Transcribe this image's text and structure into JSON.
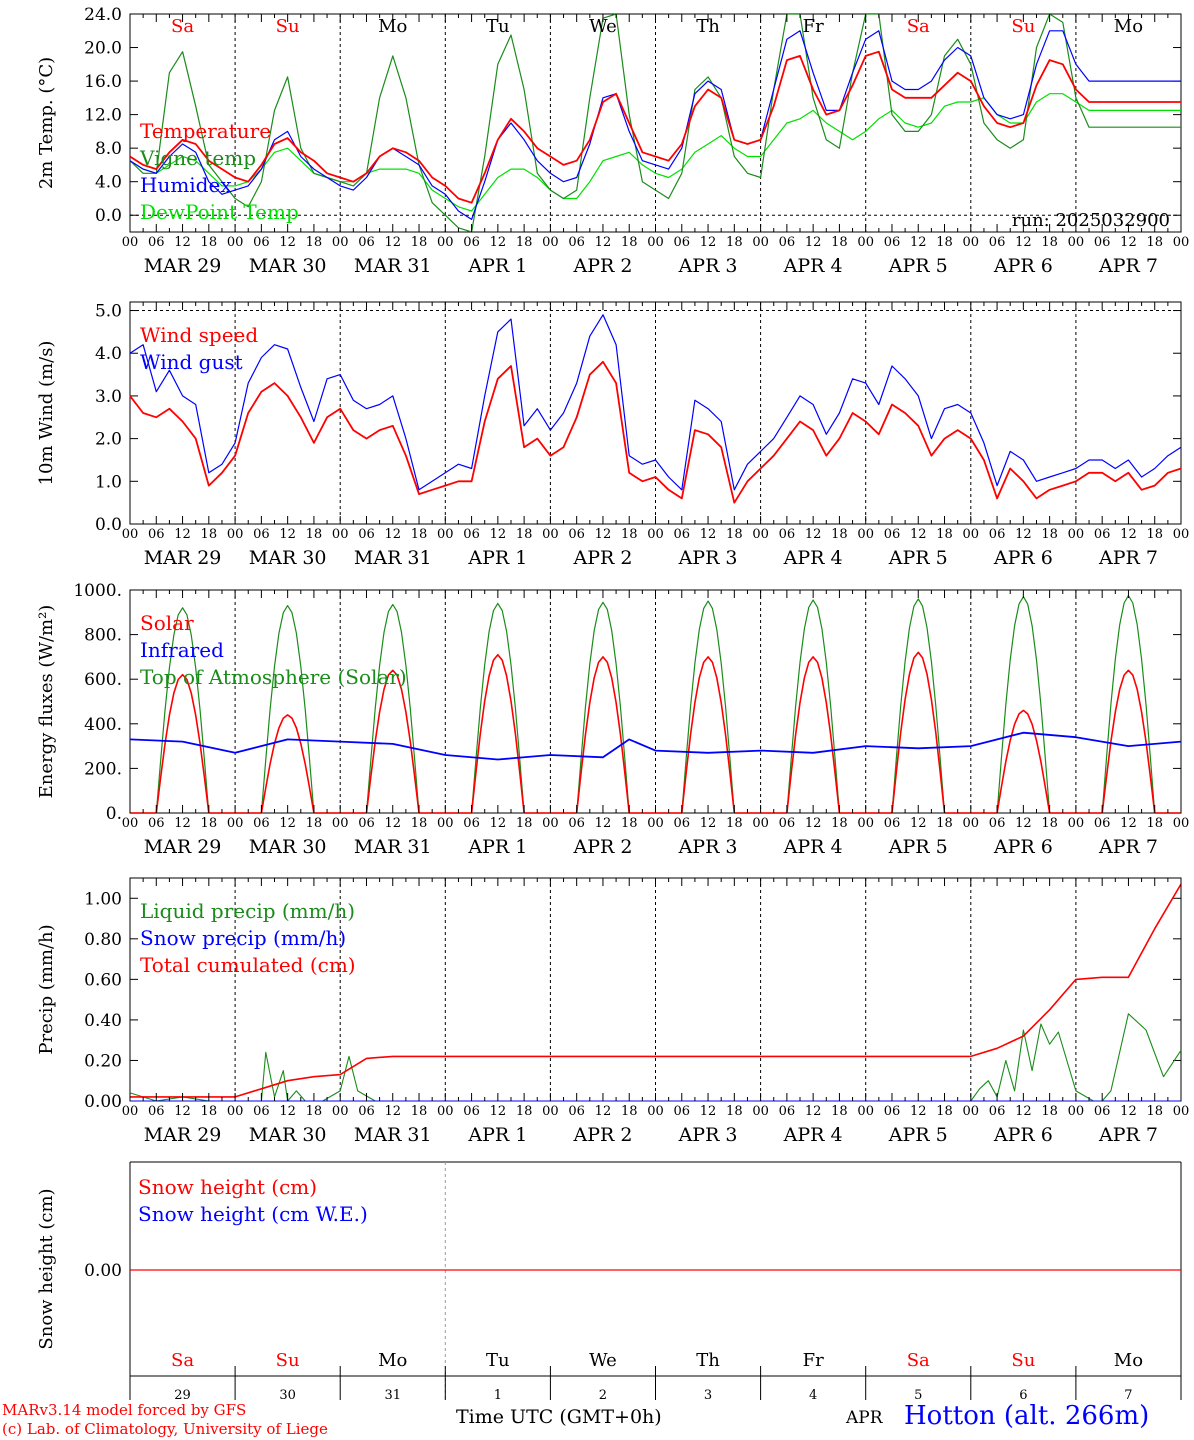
{
  "colors": {
    "red": "#ff0000",
    "dark_green": "#1a8c1a",
    "green": "#00e000",
    "blue": "#0000ff",
    "black": "#000000"
  },
  "x_axis": {
    "hour_ticks": [
      "00",
      "06",
      "12",
      "18"
    ],
    "end_tick": "00",
    "dates": [
      "MAR 29",
      "MAR 30",
      "MAR 31",
      "APR  1",
      "APR  2",
      "APR  3",
      "APR  4",
      "APR  5",
      "APR  6",
      "APR  7"
    ],
    "weekdays": [
      {
        "label": "Sa",
        "weekend": true
      },
      {
        "label": "Su",
        "weekend": true
      },
      {
        "label": "Mo",
        "weekend": false
      },
      {
        "label": "Tu",
        "weekend": false
      },
      {
        "label": "We",
        "weekend": false
      },
      {
        "label": "Th",
        "weekend": false
      },
      {
        "label": "Fr",
        "weekend": false
      },
      {
        "label": "Sa",
        "weekend": true
      },
      {
        "label": "Su",
        "weekend": true
      },
      {
        "label": "Mo",
        "weekend": false
      }
    ],
    "day_numbers": [
      "29",
      "30",
      "31",
      "1",
      "2",
      "3",
      "4",
      "5",
      "6",
      "7"
    ],
    "month_label": "APR",
    "xlabel": "Time UTC (GMT+0h)"
  },
  "chart_data": [
    {
      "type": "line",
      "ylabel": "2m Temp. (°C)",
      "ylim": [
        -2,
        24
      ],
      "yticks": [
        "0.0",
        "4.0",
        "8.0",
        "12.0",
        "16.0",
        "20.0",
        "24.0"
      ],
      "ytick_values": [
        0,
        4,
        8,
        12,
        16,
        20,
        24
      ],
      "reference_line": 0,
      "annotation": "run: 2025032900",
      "x_hours": [
        0,
        3,
        6,
        9,
        12,
        15,
        18,
        21,
        24,
        27,
        30,
        33,
        36,
        39,
        42,
        45,
        48,
        51,
        54,
        57,
        60,
        63,
        66,
        69,
        72,
        75,
        78,
        81,
        84,
        87,
        90,
        93,
        96,
        99,
        102,
        105,
        108,
        111,
        114,
        117,
        120,
        123,
        126,
        129,
        132,
        135,
        138,
        141,
        144,
        147,
        150,
        153,
        156,
        159,
        162,
        165,
        168,
        171,
        174,
        177,
        180,
        183,
        186,
        189,
        192,
        195,
        198,
        201,
        204,
        207,
        210,
        213,
        216,
        219,
        222,
        225,
        228,
        231,
        234,
        237,
        240
      ],
      "series": [
        {
          "name": "Temperature",
          "color_key": "red",
          "values": [
            7.0,
            6.0,
            5.5,
            7.5,
            9.0,
            8.5,
            6.5,
            5.5,
            4.5,
            4.0,
            6.0,
            8.5,
            9.2,
            7.5,
            6.5,
            5.0,
            4.5,
            4.0,
            5.0,
            7.0,
            8.0,
            7.5,
            6.5,
            4.5,
            3.5,
            2.0,
            1.5,
            5.0,
            9.0,
            11.5,
            10.0,
            8.0,
            7.0,
            6.0,
            6.5,
            9.0,
            13.5,
            14.5,
            11.0,
            7.5,
            7.0,
            6.5,
            8.5,
            13.0,
            15.0,
            14.0,
            9.0,
            8.5,
            9.0,
            13.0,
            18.5,
            19.0,
            15.0,
            12.0,
            12.5,
            15.5,
            19.0,
            19.5,
            15.0,
            14.0,
            14.0,
            14.0,
            15.5,
            17.0,
            16.0,
            13.0,
            11.0,
            10.5,
            11.0,
            15.5,
            18.5,
            18.0,
            15.0,
            13.5,
            13.5,
            13.5,
            13.5,
            13.5,
            13.5,
            13.5,
            13.5
          ]
        },
        {
          "name": "Vigne temp",
          "color_key": "dark_green",
          "values": [
            6.5,
            5.0,
            5.0,
            17.0,
            19.5,
            13.0,
            6.0,
            4.0,
            2.0,
            1.0,
            4.0,
            12.5,
            16.5,
            8.0,
            5.0,
            4.5,
            4.0,
            3.5,
            5.0,
            14.0,
            19.0,
            14.0,
            6.0,
            1.5,
            0.0,
            -1.5,
            -2.0,
            7.0,
            18.0,
            21.5,
            15.0,
            5.0,
            3.0,
            2.0,
            3.0,
            14.0,
            23.5,
            24.0,
            12.0,
            4.0,
            3.0,
            2.0,
            5.0,
            15.0,
            16.5,
            14.0,
            7.0,
            5.0,
            4.5,
            15.0,
            24.0,
            24.0,
            14.0,
            9.0,
            8.0,
            17.0,
            24.0,
            24.0,
            12.0,
            10.0,
            10.0,
            12.0,
            19.0,
            21.0,
            18.0,
            11.0,
            9.0,
            8.0,
            9.0,
            20.0,
            24.0,
            23.0,
            14.0,
            10.5,
            10.5,
            10.5,
            10.5,
            10.5,
            10.5,
            10.5,
            10.5
          ]
        },
        {
          "name": "Humidex",
          "color_key": "blue",
          "values": [
            6.5,
            5.5,
            5.0,
            7.0,
            8.5,
            7.5,
            4.0,
            2.5,
            3.0,
            3.5,
            5.5,
            9.0,
            10.0,
            7.0,
            5.5,
            4.5,
            3.5,
            3.0,
            4.5,
            7.0,
            8.0,
            7.0,
            6.0,
            3.5,
            2.5,
            0.5,
            -0.5,
            4.0,
            9.0,
            11.0,
            9.0,
            6.5,
            5.0,
            4.0,
            4.5,
            8.5,
            14.0,
            14.5,
            10.0,
            6.5,
            6.0,
            5.5,
            8.0,
            14.5,
            16.0,
            15.0,
            9.0,
            8.5,
            9.0,
            15.0,
            21.0,
            22.0,
            17.0,
            12.5,
            12.5,
            17.0,
            21.0,
            22.0,
            16.0,
            15.0,
            15.0,
            16.0,
            18.5,
            20.0,
            19.0,
            14.0,
            12.0,
            11.5,
            12.0,
            18.0,
            22.0,
            22.0,
            18.0,
            16.0,
            16.0,
            16.0,
            16.0,
            16.0,
            16.0,
            16.0,
            16.0
          ]
        },
        {
          "name": "DewPoint Temp",
          "color_key": "green",
          "values": [
            6.5,
            5.5,
            5.0,
            6.0,
            7.0,
            6.5,
            5.0,
            3.5,
            3.5,
            4.0,
            5.5,
            7.5,
            8.0,
            6.5,
            5.0,
            4.5,
            4.0,
            4.0,
            5.0,
            5.5,
            5.5,
            5.5,
            5.0,
            3.0,
            2.0,
            1.0,
            0.5,
            2.5,
            4.5,
            5.5,
            5.5,
            4.5,
            3.0,
            2.0,
            2.0,
            4.0,
            6.5,
            7.0,
            7.5,
            6.0,
            5.0,
            4.5,
            5.5,
            7.5,
            8.5,
            9.5,
            8.0,
            7.0,
            7.0,
            9.0,
            11.0,
            11.5,
            12.5,
            11.0,
            10.0,
            9.0,
            10.0,
            11.5,
            12.5,
            11.0,
            10.5,
            11.0,
            13.0,
            13.5,
            13.5,
            14.0,
            12.0,
            11.0,
            11.0,
            13.5,
            14.5,
            14.5,
            13.5,
            12.5,
            12.5,
            12.5,
            12.5,
            12.5,
            12.5,
            12.5,
            12.5
          ]
        }
      ]
    },
    {
      "type": "line",
      "ylabel": "10m Wind (m/s)",
      "ylim": [
        0,
        5.2
      ],
      "yticks": [
        "0.0",
        "1.0",
        "2.0",
        "3.0",
        "4.0",
        "5.0"
      ],
      "ytick_values": [
        0,
        1,
        2,
        3,
        4,
        5
      ],
      "reference_line": 5,
      "x_hours": [
        0,
        3,
        6,
        9,
        12,
        15,
        18,
        21,
        24,
        27,
        30,
        33,
        36,
        39,
        42,
        45,
        48,
        51,
        54,
        57,
        60,
        63,
        66,
        69,
        72,
        75,
        78,
        81,
        84,
        87,
        90,
        93,
        96,
        99,
        102,
        105,
        108,
        111,
        114,
        117,
        120,
        123,
        126,
        129,
        132,
        135,
        138,
        141,
        144,
        147,
        150,
        153,
        156,
        159,
        162,
        165,
        168,
        171,
        174,
        177,
        180,
        183,
        186,
        189,
        192,
        195,
        198,
        201,
        204,
        207,
        210,
        213,
        216,
        219,
        222,
        225,
        228,
        231,
        234,
        237,
        240
      ],
      "series": [
        {
          "name": "Wind speed",
          "color_key": "red",
          "values": [
            3.0,
            2.6,
            2.5,
            2.7,
            2.4,
            2.0,
            0.9,
            1.2,
            1.6,
            2.6,
            3.1,
            3.3,
            3.0,
            2.5,
            1.9,
            2.5,
            2.7,
            2.2,
            2.0,
            2.2,
            2.3,
            1.6,
            0.7,
            0.8,
            0.9,
            1.0,
            1.0,
            2.4,
            3.4,
            3.7,
            1.8,
            2.0,
            1.6,
            1.8,
            2.5,
            3.5,
            3.8,
            3.3,
            1.2,
            1.0,
            1.1,
            0.8,
            0.6,
            2.2,
            2.1,
            1.8,
            0.5,
            1.0,
            1.3,
            1.6,
            2.0,
            2.4,
            2.2,
            1.6,
            2.0,
            2.6,
            2.4,
            2.1,
            2.8,
            2.6,
            2.3,
            1.6,
            2.0,
            2.2,
            2.0,
            1.5,
            0.6,
            1.3,
            1.0,
            0.6,
            0.8,
            0.9,
            1.0,
            1.2,
            1.2,
            1.0,
            1.2,
            0.8,
            0.9,
            1.2,
            1.3
          ]
        },
        {
          "name": "Wind gust",
          "color_key": "blue",
          "values": [
            4.0,
            4.2,
            3.1,
            3.6,
            3.0,
            2.8,
            1.2,
            1.4,
            1.9,
            3.3,
            3.9,
            4.2,
            4.1,
            3.2,
            2.4,
            3.4,
            3.5,
            2.9,
            2.7,
            2.8,
            3.0,
            2.0,
            0.8,
            1.0,
            1.2,
            1.4,
            1.3,
            3.0,
            4.5,
            4.8,
            2.3,
            2.7,
            2.2,
            2.6,
            3.3,
            4.4,
            4.9,
            4.2,
            1.6,
            1.4,
            1.5,
            1.1,
            0.8,
            2.9,
            2.7,
            2.4,
            0.8,
            1.4,
            1.7,
            2.0,
            2.5,
            3.0,
            2.8,
            2.1,
            2.6,
            3.4,
            3.3,
            2.8,
            3.7,
            3.4,
            3.0,
            2.0,
            2.7,
            2.8,
            2.6,
            1.9,
            0.9,
            1.7,
            1.5,
            1.0,
            1.1,
            1.2,
            1.3,
            1.5,
            1.5,
            1.3,
            1.5,
            1.1,
            1.3,
            1.6,
            1.8
          ]
        }
      ]
    },
    {
      "type": "line",
      "ylabel": "Energy fluxes (W/m²)",
      "ylim": [
        0,
        1000
      ],
      "yticks": [
        "0.",
        "200.",
        "400.",
        "600.",
        "800.",
        "1000."
      ],
      "ytick_values": [
        0,
        200,
        400,
        600,
        800,
        1000
      ],
      "day_peaks_toa": [
        920,
        930,
        935,
        940,
        945,
        950,
        955,
        960,
        970,
        975
      ],
      "day_peaks_solar": [
        620,
        440,
        640,
        710,
        700,
        700,
        700,
        720,
        460,
        640
      ],
      "daylight_hours": [
        6,
        18
      ],
      "series": [
        {
          "name": "Solar",
          "color_key": "red",
          "values": [
            620,
            440,
            640,
            710,
            700,
            700,
            700,
            720,
            460,
            640
          ]
        },
        {
          "name": "Infrared",
          "color_key": "blue",
          "x_hours": [
            0,
            12,
            24,
            36,
            48,
            60,
            72,
            84,
            96,
            108,
            114,
            120,
            132,
            144,
            156,
            168,
            180,
            192,
            204,
            216,
            228,
            240
          ],
          "values": [
            330,
            320,
            270,
            330,
            320,
            310,
            260,
            240,
            260,
            250,
            330,
            280,
            270,
            280,
            270,
            300,
            290,
            300,
            360,
            340,
            300,
            320
          ]
        },
        {
          "name": "Top of Atmosphere (Solar)",
          "color_key": "dark_green",
          "values": [
            920,
            930,
            935,
            940,
            945,
            950,
            955,
            960,
            970,
            975
          ]
        }
      ]
    },
    {
      "type": "line",
      "ylabel": "Precip (mm/h)",
      "ylim": [
        0,
        1.1
      ],
      "yticks": [
        "0.00",
        "0.20",
        "0.40",
        "0.60",
        "0.80",
        "1.00"
      ],
      "ytick_values": [
        0,
        0.2,
        0.4,
        0.6,
        0.8,
        1.0
      ],
      "series": [
        {
          "name": "Liquid precip (mm/h)",
          "color_key": "dark_green",
          "x_hours": [
            0,
            6,
            12,
            18,
            24,
            30,
            31,
            33,
            35,
            36,
            38,
            40,
            44,
            48,
            50,
            52,
            56,
            72,
            192,
            194,
            196,
            198,
            200,
            202,
            204,
            206,
            208,
            210,
            212,
            216,
            220,
            222,
            224,
            228,
            232,
            236,
            240
          ],
          "values": [
            0.04,
            0.0,
            0.02,
            0.0,
            0.0,
            0.0,
            0.24,
            0.02,
            0.15,
            0.0,
            0.05,
            0.0,
            0.0,
            0.05,
            0.22,
            0.05,
            0.0,
            0.0,
            0.0,
            0.06,
            0.1,
            0.02,
            0.2,
            0.05,
            0.35,
            0.15,
            0.38,
            0.28,
            0.34,
            0.05,
            0.0,
            0.0,
            0.05,
            0.43,
            0.35,
            0.12,
            0.25
          ]
        },
        {
          "name": "Snow precip (mm/h)",
          "color_key": "blue",
          "x_hours": [
            0,
            240
          ],
          "values": [
            0.0,
            0.0
          ]
        },
        {
          "name": "Total cumulated (cm)",
          "color_key": "red",
          "x_hours": [
            0,
            24,
            30,
            36,
            42,
            48,
            54,
            60,
            72,
            96,
            120,
            144,
            168,
            192,
            198,
            204,
            210,
            216,
            222,
            228,
            234,
            240
          ],
          "values": [
            0.02,
            0.02,
            0.06,
            0.1,
            0.12,
            0.13,
            0.21,
            0.22,
            0.22,
            0.22,
            0.22,
            0.22,
            0.22,
            0.22,
            0.26,
            0.32,
            0.45,
            0.6,
            0.61,
            0.61,
            0.85,
            1.07
          ]
        }
      ]
    },
    {
      "type": "line",
      "ylabel": "Snow height (cm)",
      "ytick_label": "0.00",
      "series": [
        {
          "name": "Snow height (cm)",
          "color_key": "red",
          "values": [
            0,
            0
          ]
        },
        {
          "name": "Snow height (cm W.E.)",
          "color_key": "blue",
          "values": [
            0,
            0
          ]
        }
      ]
    }
  ],
  "footer": {
    "model_line1": "MARv3.14 model forced by GFS",
    "model_line2": "(c) Lab. of Climatology, University of Liege",
    "station": "Hotton (alt. 266m)"
  }
}
